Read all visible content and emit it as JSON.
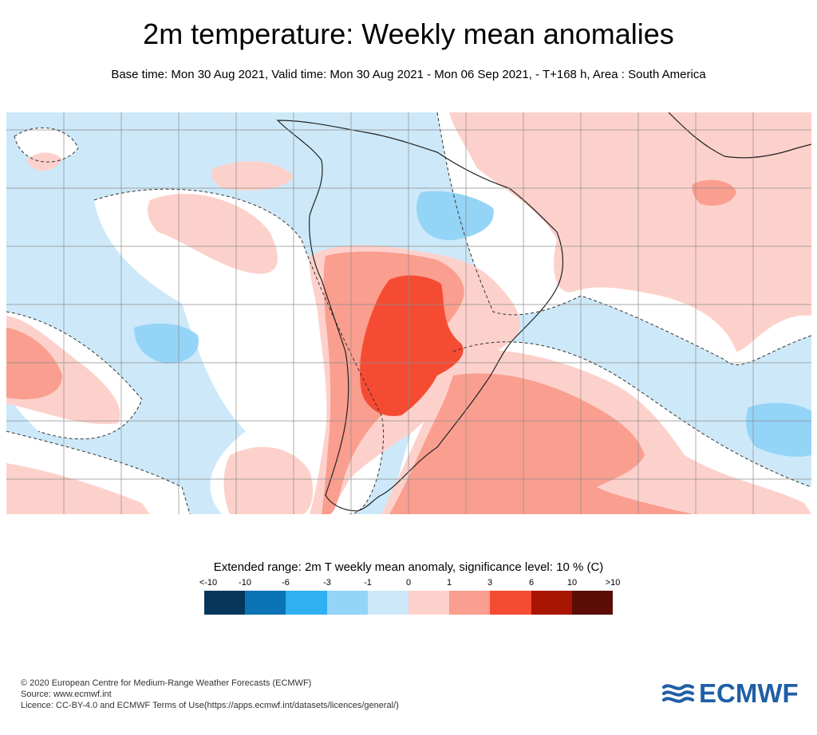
{
  "header": {
    "title": "2m temperature: Weekly mean anomalies",
    "subtitle": "Base time: Mon 30 Aug 2021, Valid time: Mon 30 Aug 2021 - Mon 06 Sep 2021, - T+168 h, Area : South America"
  },
  "legend": {
    "title": "Extended range: 2m T weekly mean anomaly, significance level: 10 % (C)",
    "ticks": [
      "<-10",
      "-10",
      "-6",
      "-3",
      "-1",
      "0",
      "1",
      "3",
      "6",
      "10",
      ">10"
    ],
    "colors": [
      "#06375b",
      "#0a74b4",
      "#2fb0f2",
      "#94d4f7",
      "#cde9f9",
      "#fdd1cb",
      "#fa9e8f",
      "#f64b33",
      "#a81603",
      "#5b0d06"
    ]
  },
  "map": {
    "colors": {
      "ocean_cool": "#cde9f9",
      "cool_moderate": "#94d4f7",
      "warm_light": "#fdd1cb",
      "warm_moderate": "#fa9e8f",
      "warm_strong": "#f64b33",
      "neutral": "#ffffff",
      "coastline": "#222222",
      "gridline": "#888888"
    }
  },
  "footer": {
    "copyright": "© 2020 European Centre for Medium-Range Weather Forecasts (ECMWF)",
    "source": "Source: www.ecmwf.int",
    "licence": "Licence: CC-BY-4.0 and ECMWF Terms of Use(https://apps.ecmwf.int/datasets/licences/general/)"
  },
  "logo": {
    "text": "ECMWF",
    "color": "#1f5fa6"
  }
}
